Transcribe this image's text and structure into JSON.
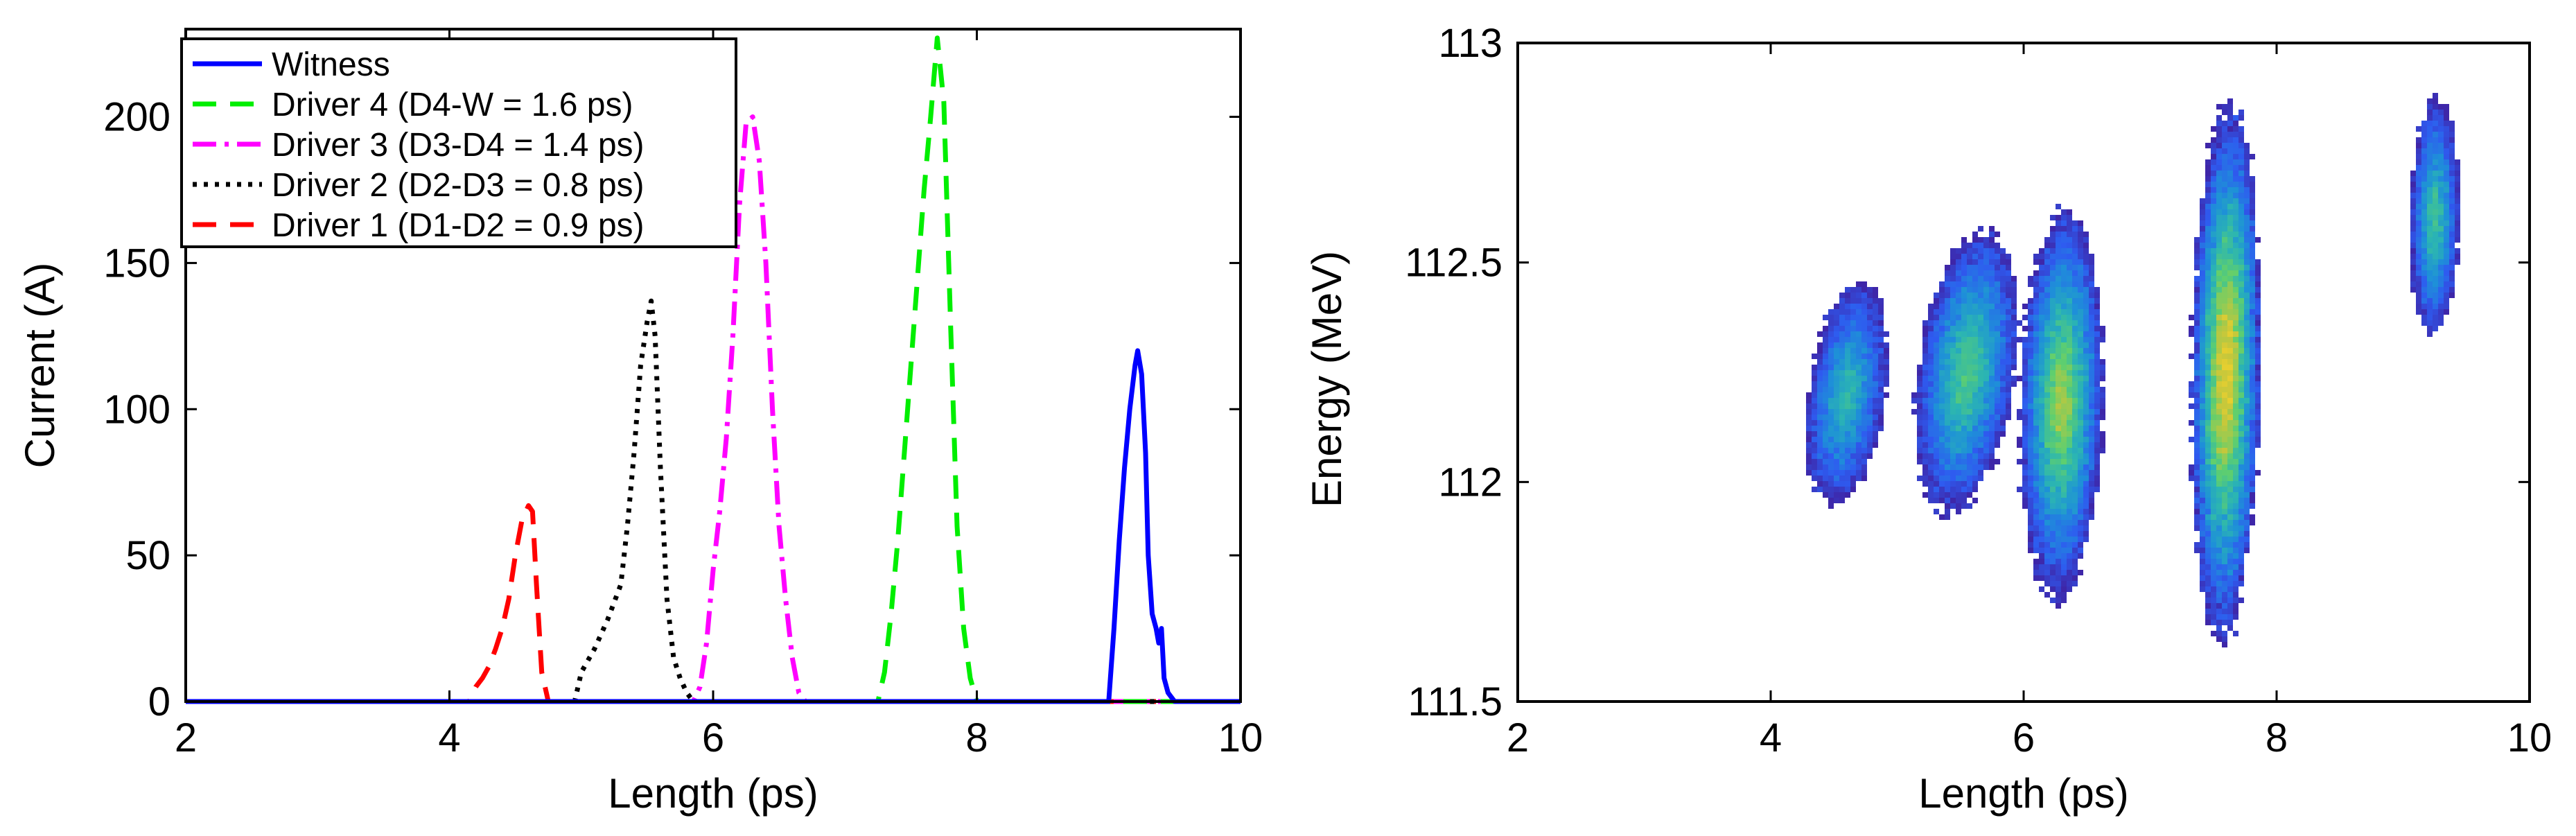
{
  "chart_data": [
    {
      "type": "line",
      "xlabel": "Length (ps)",
      "ylabel": "Current (A)",
      "xlim": [
        2,
        10
      ],
      "ylim": [
        0,
        230
      ],
      "xticks": [
        2,
        4,
        6,
        8,
        10
      ],
      "yticks": [
        0,
        50,
        100,
        150,
        200
      ],
      "legend_position": "top-left",
      "series": [
        {
          "name": "Witness",
          "color": "#0000ff",
          "dash": "solid",
          "x": [
            2,
            9.0,
            9.04,
            9.08,
            9.12,
            9.16,
            9.2,
            9.22,
            9.25,
            9.28,
            9.3,
            9.33,
            9.36,
            9.38,
            9.4,
            9.42,
            9.45,
            9.5,
            10
          ],
          "y": [
            0,
            0,
            25,
            55,
            80,
            100,
            115,
            120,
            112,
            85,
            50,
            30,
            25,
            20,
            25,
            8,
            3,
            0,
            0
          ]
        },
        {
          "name": "Driver 4 (D4-W = 1.6 ps)",
          "color": "#00ee00",
          "dash": "dashed",
          "x": [
            2,
            7.25,
            7.3,
            7.35,
            7.4,
            7.45,
            7.5,
            7.55,
            7.6,
            7.65,
            7.7,
            7.75,
            7.8,
            7.85,
            7.9,
            7.95,
            8.0,
            10
          ],
          "y": [
            0,
            0,
            10,
            30,
            55,
            85,
            115,
            145,
            175,
            200,
            227,
            205,
            130,
            60,
            25,
            8,
            0,
            0
          ]
        },
        {
          "name": "Driver 3 (D3-D4 = 1.4 ps)",
          "color": "#ff00ff",
          "dash": "dashdot",
          "x": [
            2,
            5.85,
            5.9,
            5.95,
            6.0,
            6.05,
            6.1,
            6.15,
            6.2,
            6.25,
            6.3,
            6.35,
            6.4,
            6.45,
            6.5,
            6.55,
            6.6,
            6.65,
            6.7,
            10
          ],
          "y": [
            0,
            0,
            5,
            20,
            45,
            65,
            90,
            125,
            170,
            198,
            200,
            185,
            150,
            100,
            60,
            35,
            15,
            3,
            0,
            0
          ]
        },
        {
          "name": "Driver 2 (D2-D3 = 0.8 ps)",
          "color": "#000000",
          "dash": "dotted",
          "x": [
            2,
            4.95,
            5.0,
            5.1,
            5.2,
            5.3,
            5.35,
            5.4,
            5.45,
            5.5,
            5.53,
            5.56,
            5.6,
            5.65,
            5.7,
            5.75,
            5.8,
            5.85,
            10
          ],
          "y": [
            0,
            0,
            10,
            18,
            28,
            40,
            60,
            85,
            115,
            130,
            137,
            125,
            80,
            35,
            15,
            8,
            3,
            0,
            0
          ]
        },
        {
          "name": "Driver 1 (D1-D2 = 0.9 ps)",
          "color": "#ff0000",
          "dash": "dashed",
          "x": [
            2,
            4.15,
            4.2,
            4.25,
            4.3,
            4.35,
            4.4,
            4.45,
            4.5,
            4.55,
            4.6,
            4.63,
            4.66,
            4.7,
            4.75,
            10
          ],
          "y": [
            0,
            0,
            5,
            8,
            12,
            18,
            25,
            35,
            50,
            62,
            67,
            65,
            40,
            10,
            0,
            0
          ]
        }
      ]
    },
    {
      "type": "heatmap",
      "xlabel": "Length (ps)",
      "ylabel": "Energy (MeV)",
      "xlim": [
        2,
        10
      ],
      "ylim": [
        111.5,
        113
      ],
      "xticks": [
        2,
        4,
        6,
        8,
        10
      ],
      "yticks": [
        111.5,
        112,
        112.5,
        113
      ],
      "colormap": [
        "#3e26a8",
        "#2e5bf0",
        "#1e90d8",
        "#2bb5b2",
        "#5fcf6e",
        "#c3c73c",
        "#f5d22a"
      ],
      "blobs": [
        {
          "x": 4.6,
          "y": 112.2,
          "spread_x": 0.32,
          "spread_y": 0.26,
          "tilt": -0.35,
          "peak": 0.5
        },
        {
          "x": 5.55,
          "y": 112.25,
          "spread_x": 0.4,
          "spread_y": 0.33,
          "tilt": -0.35,
          "peak": 0.6
        },
        {
          "x": 6.3,
          "y": 112.18,
          "spread_x": 0.34,
          "spread_y": 0.45,
          "tilt": -0.1,
          "peak": 0.75
        },
        {
          "x": 7.6,
          "y": 112.25,
          "spread_x": 0.28,
          "spread_y": 0.62,
          "tilt": -0.12,
          "peak": 0.9
        },
        {
          "x": 9.25,
          "y": 112.6,
          "spread_x": 0.2,
          "spread_y": 0.28,
          "tilt": -0.08,
          "peak": 0.55
        }
      ]
    }
  ]
}
